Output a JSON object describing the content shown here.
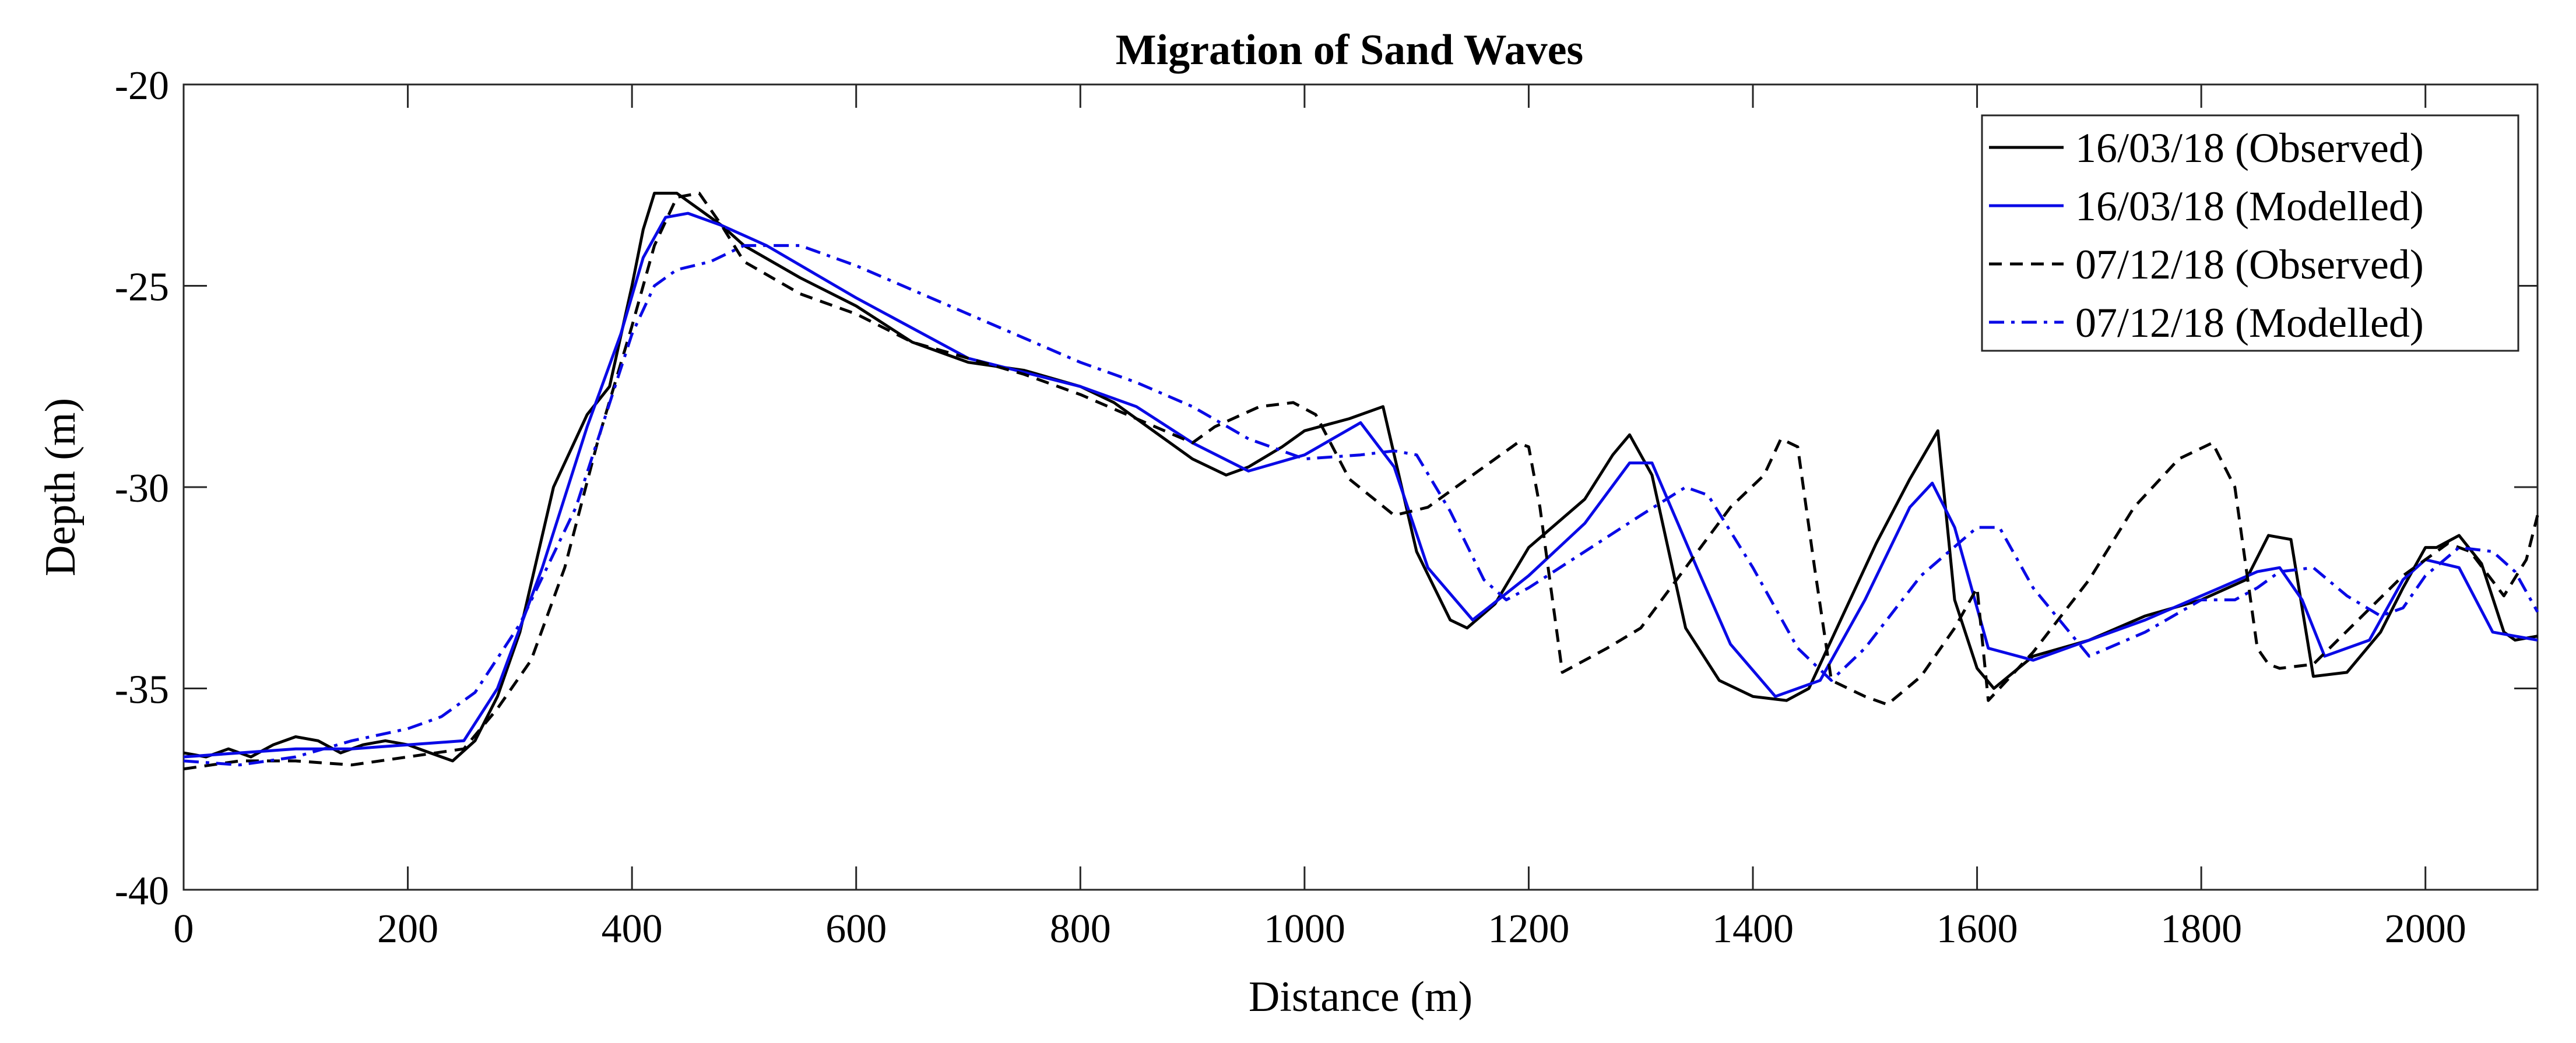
{
  "chart_data": {
    "type": "line",
    "title": "Migration of Sand Waves",
    "xlabel": "Distance (m)",
    "ylabel": "Depth (m)",
    "xlim": [
      0,
      2100
    ],
    "ylim": [
      -40,
      -20
    ],
    "xticks": [
      0,
      200,
      400,
      600,
      800,
      1000,
      1200,
      1400,
      1600,
      1800,
      2000
    ],
    "yticks": [
      -40,
      -35,
      -30,
      -25,
      -20
    ],
    "legend_position": "top-right",
    "grid": false,
    "series": [
      {
        "name": "16/03/18 (Observed)",
        "color": "#000000",
        "style": "solid",
        "x": [
          0,
          20,
          40,
          60,
          80,
          100,
          120,
          140,
          160,
          180,
          200,
          220,
          240,
          260,
          280,
          300,
          330,
          360,
          380,
          400,
          410,
          420,
          440,
          460,
          480,
          500,
          550,
          600,
          650,
          700,
          750,
          800,
          830,
          870,
          900,
          930,
          950,
          980,
          1000,
          1040,
          1070,
          1100,
          1130,
          1145,
          1170,
          1200,
          1250,
          1275,
          1290,
          1310,
          1340,
          1370,
          1400,
          1430,
          1450,
          1480,
          1510,
          1540,
          1565,
          1580,
          1600,
          1615,
          1650,
          1700,
          1750,
          1800,
          1840,
          1860,
          1880,
          1900,
          1930,
          1960,
          1980,
          2000,
          2010,
          2030,
          2050,
          2070,
          2080,
          2100
        ],
        "y": [
          -36.6,
          -36.7,
          -36.5,
          -36.7,
          -36.4,
          -36.2,
          -36.3,
          -36.6,
          -36.4,
          -36.3,
          -36.4,
          -36.6,
          -36.8,
          -36.3,
          -35.2,
          -33.6,
          -30.0,
          -28.2,
          -27.5,
          -25.0,
          -23.6,
          -22.7,
          -22.7,
          -23.1,
          -23.5,
          -24.0,
          -24.8,
          -25.5,
          -26.4,
          -26.9,
          -27.1,
          -27.5,
          -27.9,
          -28.7,
          -29.3,
          -29.7,
          -29.5,
          -29.0,
          -28.6,
          -28.3,
          -28.0,
          -31.6,
          -33.3,
          -33.5,
          -32.9,
          -31.5,
          -30.3,
          -29.2,
          -28.7,
          -29.7,
          -33.5,
          -34.8,
          -35.2,
          -35.3,
          -35.0,
          -33.2,
          -31.4,
          -29.8,
          -28.6,
          -32.8,
          -34.5,
          -35.0,
          -34.2,
          -33.8,
          -33.2,
          -32.8,
          -32.3,
          -31.2,
          -31.3,
          -34.7,
          -34.6,
          -33.6,
          -32.5,
          -31.5,
          -31.5,
          -31.2,
          -31.9,
          -33.6,
          -33.8,
          -33.7
        ]
      },
      {
        "name": "16/03/18 (Modelled)",
        "color": "#0a0ae6",
        "style": "solid",
        "x": [
          0,
          50,
          100,
          150,
          200,
          250,
          280,
          320,
          360,
          390,
          410,
          430,
          450,
          480,
          520,
          600,
          700,
          800,
          850,
          900,
          950,
          1000,
          1050,
          1080,
          1110,
          1150,
          1200,
          1250,
          1290,
          1310,
          1350,
          1380,
          1420,
          1460,
          1500,
          1540,
          1560,
          1580,
          1610,
          1650,
          1700,
          1750,
          1800,
          1850,
          1870,
          1890,
          1910,
          1950,
          1980,
          2000,
          2030,
          2060,
          2100
        ],
        "y": [
          -36.7,
          -36.6,
          -36.5,
          -36.5,
          -36.4,
          -36.3,
          -35.0,
          -32.0,
          -28.5,
          -26.2,
          -24.3,
          -23.3,
          -23.2,
          -23.5,
          -24.0,
          -25.3,
          -26.8,
          -27.5,
          -28.0,
          -28.9,
          -29.6,
          -29.2,
          -28.4,
          -29.5,
          -32.0,
          -33.3,
          -32.2,
          -30.9,
          -29.4,
          -29.4,
          -32.0,
          -33.9,
          -35.2,
          -34.8,
          -32.8,
          -30.5,
          -29.9,
          -31.0,
          -34.0,
          -34.3,
          -33.8,
          -33.3,
          -32.7,
          -32.1,
          -32.0,
          -32.8,
          -34.2,
          -33.8,
          -32.3,
          -31.8,
          -32.0,
          -33.6,
          -33.8
        ]
      },
      {
        "name": "07/12/18 (Observed)",
        "color": "#000000",
        "style": "dashed",
        "x": [
          0,
          50,
          100,
          150,
          200,
          250,
          280,
          310,
          340,
          370,
          400,
          420,
          440,
          460,
          480,
          500,
          550,
          600,
          650,
          700,
          750,
          800,
          850,
          900,
          920,
          960,
          990,
          1010,
          1040,
          1080,
          1110,
          1150,
          1190,
          1200,
          1210,
          1230,
          1270,
          1300,
          1340,
          1380,
          1410,
          1425,
          1440,
          1455,
          1470,
          1500,
          1520,
          1550,
          1580,
          1600,
          1610,
          1650,
          1700,
          1740,
          1780,
          1810,
          1830,
          1850,
          1860,
          1870,
          1900,
          1940,
          1980,
          2000,
          2020,
          2040,
          2070,
          2090,
          2100
        ],
        "y": [
          -37.0,
          -36.8,
          -36.8,
          -36.9,
          -36.7,
          -36.5,
          -35.5,
          -34.3,
          -32.0,
          -28.8,
          -26.0,
          -24.0,
          -22.8,
          -22.7,
          -23.5,
          -24.4,
          -25.2,
          -25.7,
          -26.4,
          -26.8,
          -27.2,
          -27.7,
          -28.3,
          -28.9,
          -28.5,
          -28.0,
          -27.9,
          -28.2,
          -29.8,
          -30.7,
          -30.5,
          -29.7,
          -28.9,
          -29.0,
          -30.5,
          -34.6,
          -34.0,
          -33.5,
          -32.0,
          -30.5,
          -29.7,
          -28.8,
          -29.0,
          -32.0,
          -34.8,
          -35.2,
          -35.4,
          -34.7,
          -33.5,
          -32.5,
          -35.3,
          -34.1,
          -32.3,
          -30.5,
          -29.3,
          -28.9,
          -30.0,
          -34.0,
          -34.4,
          -34.5,
          -34.4,
          -33.3,
          -32.2,
          -31.8,
          -31.4,
          -31.6,
          -32.7,
          -31.8,
          -30.7
        ]
      },
      {
        "name": "07/12/18 (Modelled)",
        "color": "#0a0ae6",
        "style": "dashdot",
        "x": [
          0,
          50,
          100,
          150,
          200,
          230,
          260,
          300,
          350,
          400,
          420,
          440,
          470,
          500,
          550,
          600,
          700,
          800,
          850,
          900,
          950,
          1000,
          1050,
          1080,
          1100,
          1130,
          1160,
          1180,
          1200,
          1250,
          1300,
          1340,
          1360,
          1400,
          1440,
          1470,
          1500,
          1550,
          1600,
          1620,
          1650,
          1700,
          1750,
          1800,
          1830,
          1850,
          1870,
          1900,
          1930,
          1960,
          1980,
          2000,
          2030,
          2060,
          2080,
          2100
        ],
        "y": [
          -36.8,
          -36.9,
          -36.7,
          -36.3,
          -36.0,
          -35.7,
          -35.1,
          -33.4,
          -30.5,
          -26.2,
          -25.0,
          -24.6,
          -24.4,
          -24.0,
          -24.0,
          -24.5,
          -25.7,
          -26.9,
          -27.4,
          -28.0,
          -28.8,
          -29.3,
          -29.2,
          -29.1,
          -29.2,
          -30.6,
          -32.3,
          -32.8,
          -32.5,
          -31.6,
          -30.7,
          -30.0,
          -30.2,
          -32.0,
          -34.0,
          -34.8,
          -34.0,
          -32.2,
          -31.0,
          -31.0,
          -32.5,
          -34.2,
          -33.6,
          -32.8,
          -32.8,
          -32.5,
          -32.1,
          -32.0,
          -32.7,
          -33.2,
          -33.0,
          -32.2,
          -31.5,
          -31.6,
          -32.1,
          -33.1
        ]
      }
    ]
  }
}
